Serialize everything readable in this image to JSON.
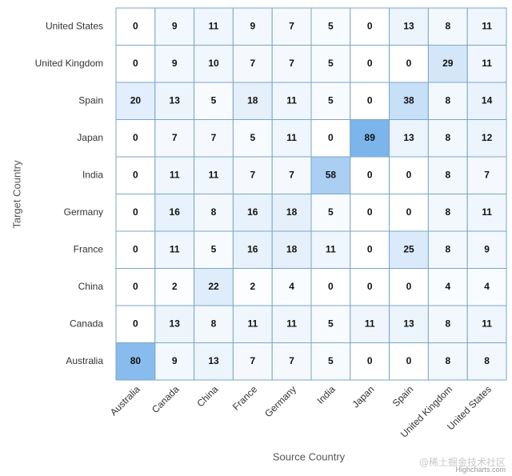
{
  "chart_data": {
    "type": "heatmap",
    "title": "",
    "xlabel": "Source Country",
    "ylabel": "Target Country",
    "x_categories": [
      "Australia",
      "Canada",
      "China",
      "France",
      "Germany",
      "India",
      "Japan",
      "Spain",
      "United Kingdom",
      "United States"
    ],
    "y_categories_top_to_bottom": [
      "United States",
      "United Kingdom",
      "Spain",
      "Japan",
      "India",
      "Germany",
      "France",
      "China",
      "Canada",
      "Australia"
    ],
    "values": [
      [
        0,
        9,
        11,
        9,
        7,
        5,
        0,
        13,
        8,
        11
      ],
      [
        0,
        9,
        10,
        7,
        7,
        5,
        0,
        0,
        29,
        11
      ],
      [
        20,
        13,
        5,
        18,
        11,
        5,
        0,
        38,
        8,
        14
      ],
      [
        0,
        7,
        7,
        5,
        11,
        0,
        89,
        13,
        8,
        12
      ],
      [
        0,
        11,
        11,
        7,
        7,
        58,
        0,
        0,
        8,
        7
      ],
      [
        0,
        16,
        8,
        16,
        18,
        5,
        0,
        0,
        8,
        11
      ],
      [
        0,
        11,
        5,
        16,
        18,
        11,
        0,
        25,
        8,
        9
      ],
      [
        0,
        2,
        22,
        2,
        4,
        0,
        0,
        0,
        4,
        4
      ],
      [
        0,
        13,
        8,
        11,
        11,
        5,
        11,
        13,
        8,
        11
      ],
      [
        80,
        9,
        13,
        7,
        7,
        5,
        0,
        0,
        8,
        8
      ]
    ],
    "value_range": [
      0,
      89
    ],
    "color_min": "#ffffff",
    "color_max": "#7cb5ec",
    "grid_color": "#7aa6c7",
    "credits": "Highcharts.com",
    "watermark": "@稀土掘金技术社区"
  }
}
